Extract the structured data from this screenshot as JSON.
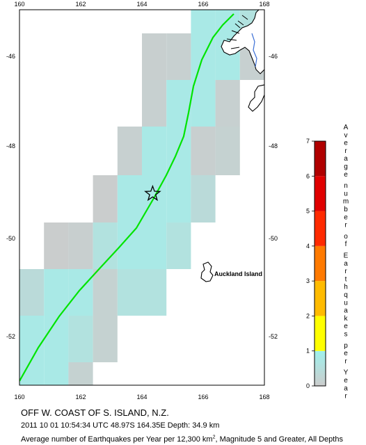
{
  "map": {
    "latitude_labels": [
      "-46",
      "-48",
      "-50",
      "-52"
    ],
    "longitude_labels": [
      "160",
      "162",
      "164",
      "166",
      "168"
    ],
    "place_label": "Auckland Island",
    "grid_cells_rows_top_down": [
      [
        null,
        null,
        null,
        null,
        null,
        null,
        null,
        0.8,
        0.8,
        0.6
      ],
      [
        null,
        null,
        null,
        null,
        null,
        0.08,
        0.12,
        0.8,
        0.8,
        0.12
      ],
      [
        null,
        null,
        null,
        null,
        null,
        0.12,
        0.8,
        0.8,
        0.12,
        null
      ],
      [
        null,
        null,
        null,
        null,
        0.12,
        0.8,
        0.8,
        0.08,
        0.16,
        null
      ],
      [
        null,
        null,
        null,
        0.04,
        0.8,
        0.8,
        0.8,
        0.4,
        null,
        null
      ],
      [
        null,
        0.04,
        0.08,
        0.6,
        0.8,
        0.8,
        0.6,
        null,
        null,
        null
      ],
      [
        0.4,
        0.8,
        0.8,
        0.16,
        0.6,
        0.6,
        null,
        null,
        null,
        null
      ],
      [
        0.8,
        0.8,
        0.6,
        0.16,
        null,
        null,
        null,
        null,
        null,
        null
      ],
      [
        0.8,
        0.8,
        0.16,
        null,
        null,
        null,
        null,
        null,
        null,
        null
      ]
    ],
    "epicenter": {
      "lon": 164.35,
      "lat": -48.97
    },
    "colors": {
      "plate_boundary": "#00e400",
      "coastline": "#000000",
      "river": "#3b6fd6"
    }
  },
  "legend": {
    "ticks": [
      "0",
      "1",
      "2",
      "3",
      "4",
      "5",
      "6",
      "7"
    ],
    "title_letters": [
      "A",
      "v",
      "e",
      "r",
      "a",
      "g",
      "e",
      "n",
      "u",
      "m",
      "b",
      "e",
      "r",
      "o",
      "f",
      "E",
      "a",
      "r",
      "t",
      "h",
      "q",
      "u",
      "a",
      "k",
      "e",
      "s",
      "p",
      "e",
      "r",
      "Y",
      "e",
      "a",
      "r"
    ],
    "colors": [
      "#c8c8c8",
      "#a0f0ec",
      "#ffff00",
      "#ffbb00",
      "#ff7a00",
      "#ff2a00",
      "#e00000",
      "#b00000"
    ]
  },
  "caption": {
    "title": "OFF W. COAST OF S. ISLAND, N.Z.",
    "info": "2011 10 01 10:54:34 UTC 48.97S 164.35E Depth: 34.9 km",
    "average_prefix": "Average number of Earthquakes per Year per 12,300 km",
    "average_sup": "2",
    "average_suffix": ", Magnitude 5 and Greater, All Depths"
  }
}
